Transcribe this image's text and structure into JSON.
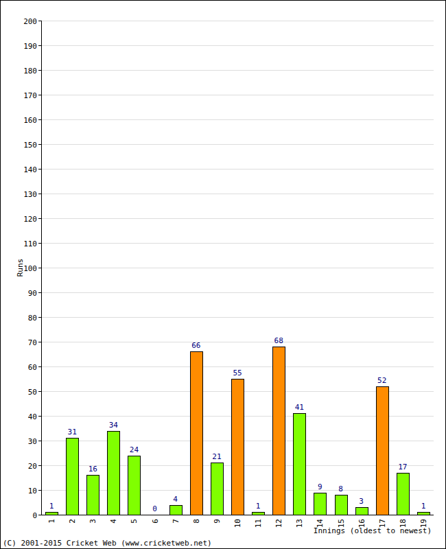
{
  "chart_data": {
    "type": "bar",
    "ylabel": "Runs",
    "xlabel": "Innings (oldest to newest)",
    "source": "(C) 2001-2015 Cricket Web (www.cricketweb.net)",
    "categories": [
      "1",
      "2",
      "3",
      "4",
      "5",
      "6",
      "7",
      "8",
      "9",
      "10",
      "11",
      "12",
      "13",
      "14",
      "15",
      "16",
      "17",
      "18",
      "19"
    ],
    "values": [
      1,
      31,
      16,
      34,
      24,
      0,
      4,
      66,
      21,
      55,
      1,
      68,
      41,
      9,
      8,
      3,
      52,
      17,
      1
    ],
    "colors": [
      "#80ff00",
      "#80ff00",
      "#80ff00",
      "#80ff00",
      "#80ff00",
      "#80ff00",
      "#80ff00",
      "#ff8c00",
      "#80ff00",
      "#ff8c00",
      "#80ff00",
      "#ff8c00",
      "#80ff00",
      "#80ff00",
      "#80ff00",
      "#80ff00",
      "#ff8c00",
      "#80ff00",
      "#80ff00"
    ],
    "ylim": [
      0,
      200
    ],
    "yticks": [
      0,
      10,
      20,
      30,
      40,
      50,
      60,
      70,
      80,
      90,
      100,
      110,
      120,
      130,
      140,
      150,
      160,
      170,
      180,
      190,
      200
    ],
    "grid": true,
    "data_labels": true
  }
}
